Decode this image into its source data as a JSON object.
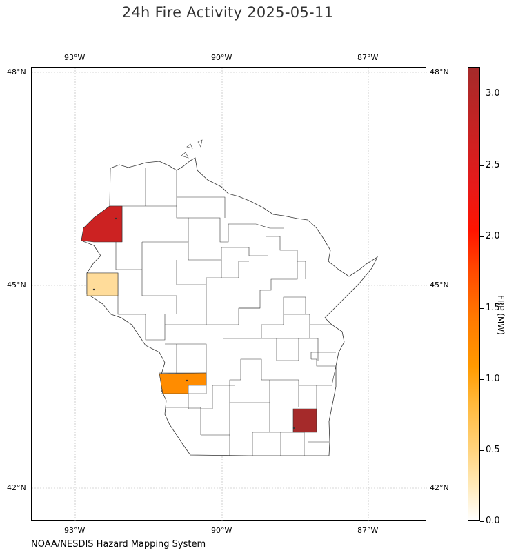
{
  "title": "24h Fire Activity 2025-05-11",
  "credit": "NOAA/NESDIS Hazard Mapping System",
  "map": {
    "lon_ticks": [
      "93°W",
      "90°W",
      "87°W"
    ],
    "lat_ticks": [
      "48°N",
      "45°N",
      "42°N"
    ],
    "region": "Wisconsin counties",
    "highlighted_counties": [
      {
        "approx_location": "northwest (Burnett area)",
        "frp_mw": 2.6,
        "color": "#cc2222"
      },
      {
        "approx_location": "west-central (Pierce/St. Croix area)",
        "frp_mw": 0.4,
        "color": "#ffdc9a"
      },
      {
        "approx_location": "southwest (Richland/Sauk area)",
        "frp_mw": 1.1,
        "color": "#ff8c00"
      },
      {
        "approx_location": "southeast (Waukesha area)",
        "frp_mw": 3.1,
        "color": "#a52a2a"
      }
    ]
  },
  "colorbar": {
    "label": "FRP (MW)",
    "ticks": [
      "0.0",
      "0.5",
      "1.0",
      "1.5",
      "2.0",
      "2.5",
      "3.0"
    ],
    "range": [
      0.0,
      3.2
    ]
  }
}
